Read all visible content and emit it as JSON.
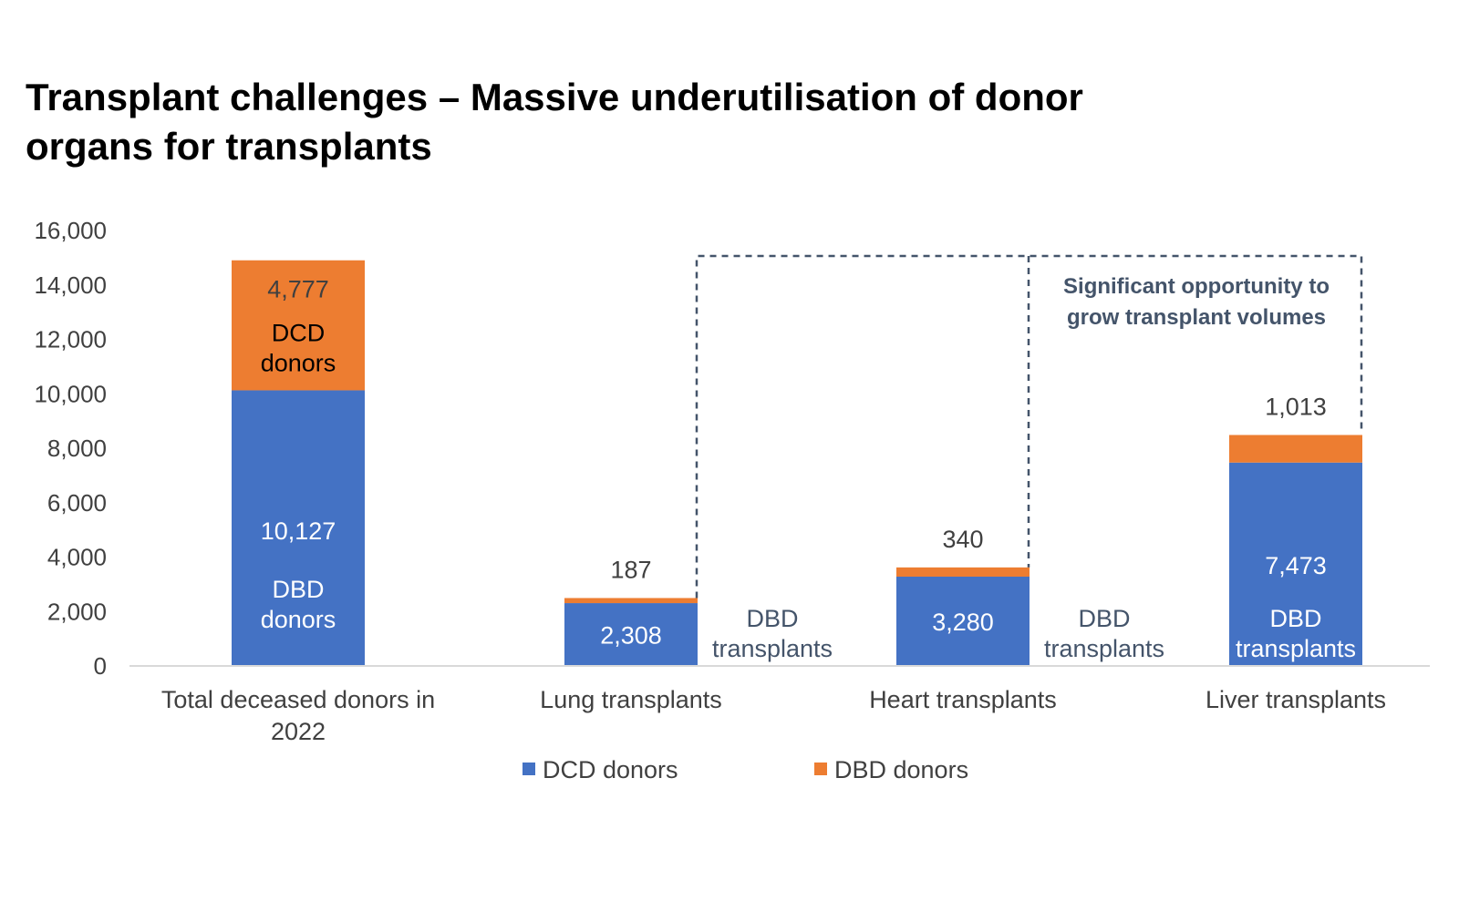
{
  "title": "Transplant challenges – Massive underutilisation of donor organs for transplants",
  "chart_data": {
    "type": "bar",
    "stacked": true,
    "categories": [
      [
        "Total deceased donors in",
        "2022"
      ],
      [
        "Lung transplants"
      ],
      [
        "Heart transplants"
      ],
      [
        "Liver transplants"
      ]
    ],
    "ylim": [
      0,
      16000
    ],
    "yticks": [
      0,
      2000,
      4000,
      6000,
      8000,
      10000,
      12000,
      14000,
      16000
    ],
    "ytick_labels": [
      "0",
      "2,000",
      "4,000",
      "6,000",
      "8,000",
      "10,000",
      "12,000",
      "14,000",
      "16,000"
    ],
    "grid": false,
    "legend": "bottom",
    "series": [
      {
        "name": "DCD donors",
        "color": "#4472c4",
        "values": [
          10127,
          2308,
          3280,
          7473
        ],
        "value_labels": [
          "10,127",
          "2,308",
          "3,280",
          "7,473"
        ],
        "segment_labels": [
          [
            "DBD",
            "donors"
          ],
          [],
          [],
          [
            "DBD",
            "transplants"
          ]
        ]
      },
      {
        "name": "DBD donors",
        "color": "#ed7d31",
        "values": [
          4777,
          187,
          340,
          1013
        ],
        "value_labels": [
          "4,777",
          "187",
          "340",
          "1,013"
        ],
        "segment_labels": [
          [
            "DCD",
            "donors"
          ],
          [],
          [],
          []
        ]
      }
    ],
    "side_labels": [
      [],
      [
        "DBD",
        "transplants"
      ],
      [
        "DBD",
        "transplants"
      ],
      []
    ],
    "annotation": [
      "Significant opportunity to",
      "grow transplant volumes"
    ]
  }
}
